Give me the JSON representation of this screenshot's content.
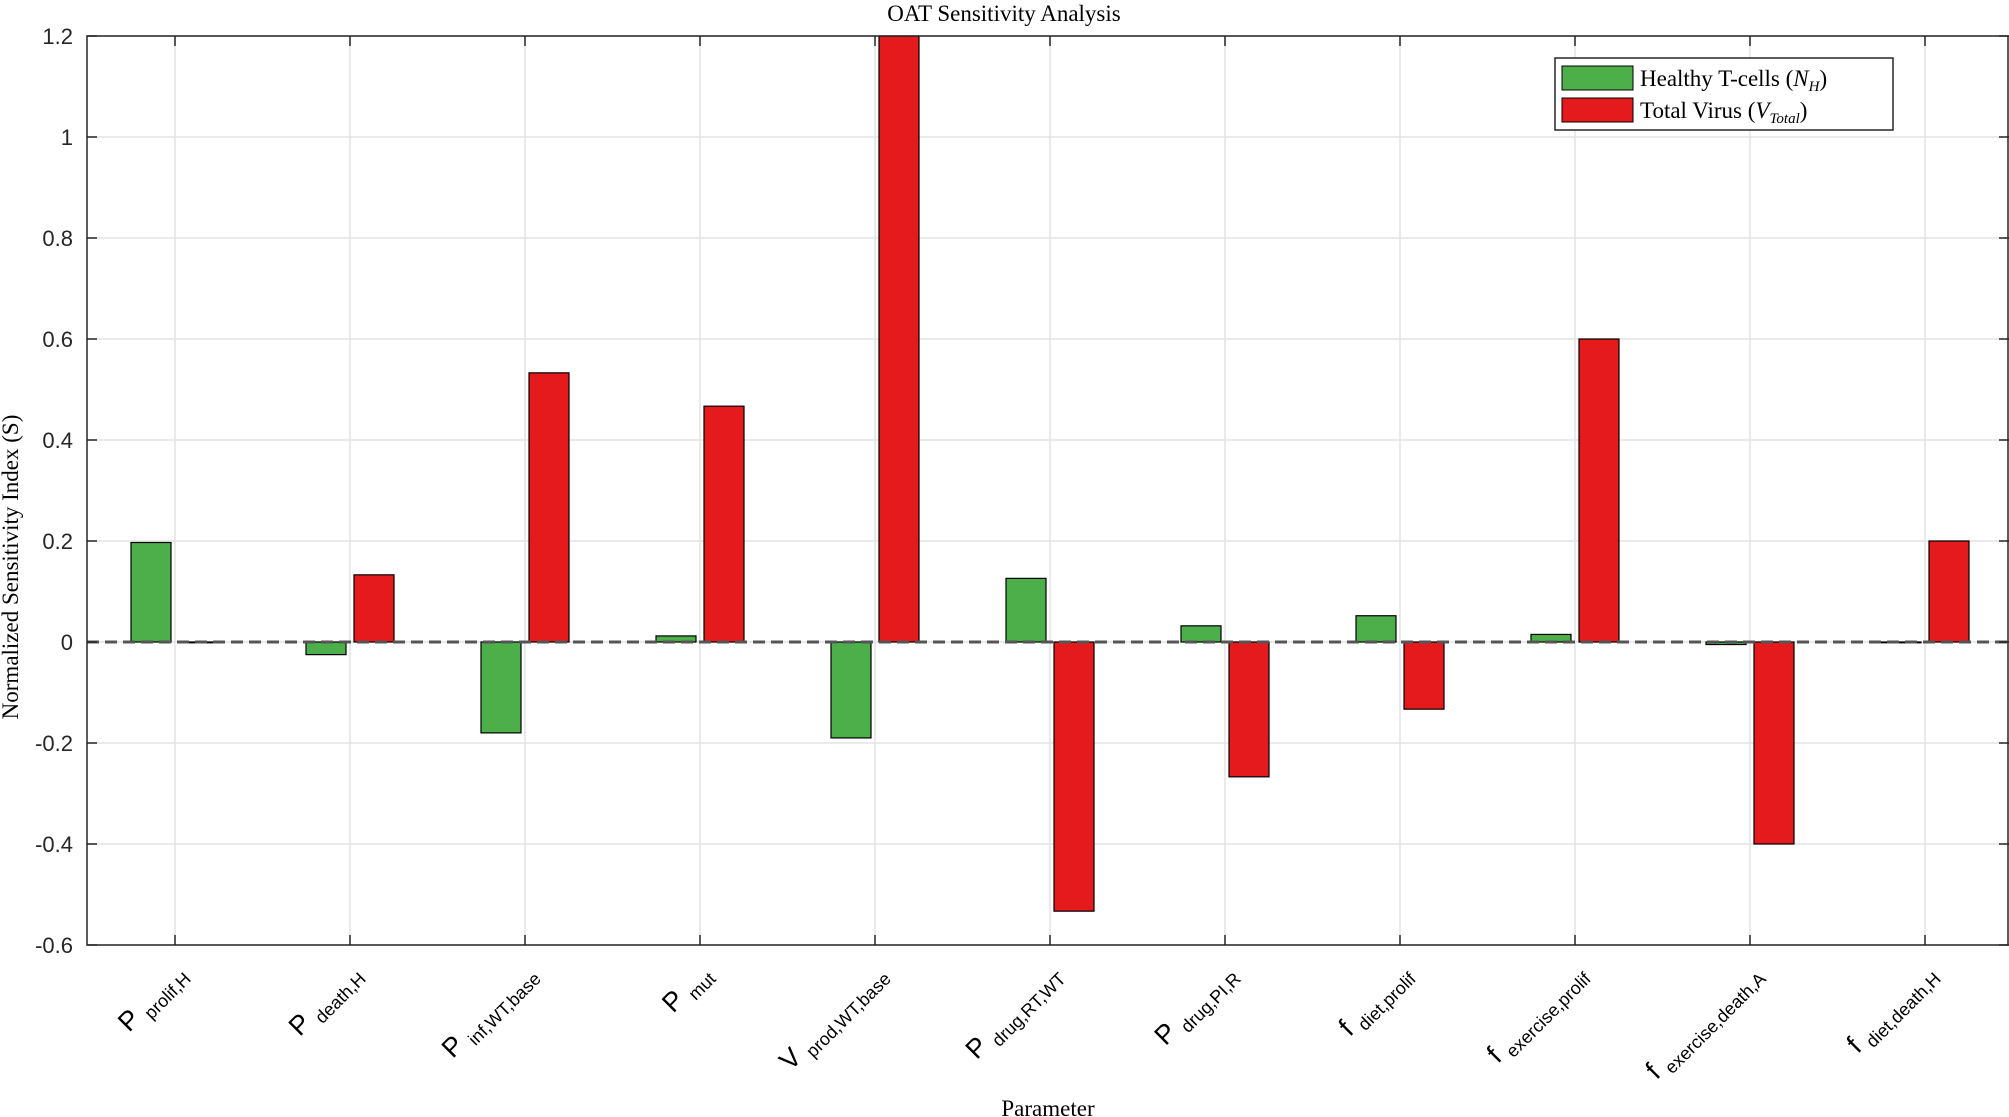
{
  "chart_data": {
    "type": "bar",
    "title": "OAT Sensitivity Analysis",
    "xlabel": "Parameter",
    "ylabel": "Normalized Sensitivity Index (S)",
    "ylim": [
      -0.6,
      1.2
    ],
    "yticks": [
      -0.6,
      -0.4,
      -0.2,
      0,
      0.2,
      0.4,
      0.6,
      0.8,
      1,
      1.2
    ],
    "ytick_labels": [
      "-0.6",
      "-0.4",
      "-0.2",
      "0",
      "0.2",
      "0.4",
      "0.6",
      "0.8",
      "1",
      "1.2"
    ],
    "grid": true,
    "legend_position": "top-right",
    "categories": [
      {
        "base": "P",
        "sub": "prolif,H"
      },
      {
        "base": "P",
        "sub": "death,H"
      },
      {
        "base": "P",
        "sub": "inf,WT,base"
      },
      {
        "base": "P",
        "sub": "mut"
      },
      {
        "base": "V",
        "sub": "prod,WT,base"
      },
      {
        "base": "P",
        "sub": "drug,RT,WT"
      },
      {
        "base": "P",
        "sub": "drug,PI,R"
      },
      {
        "base": "f",
        "sub": "diet,prolif"
      },
      {
        "base": "f",
        "sub": "exercise,prolif"
      },
      {
        "base": "f",
        "sub": "exercise,death,A"
      },
      {
        "base": "f",
        "sub": "diet,death,H"
      }
    ],
    "series": [
      {
        "name": "Healthy T-cells (N_H)",
        "legend_text": "Healthy T-cells (",
        "legend_symbol": "N",
        "legend_sub": "H",
        "color": "#4daf4a",
        "values": [
          0.197,
          -0.025,
          -0.18,
          0.012,
          -0.19,
          0.126,
          0.032,
          0.052,
          0.015,
          -0.005,
          0.0
        ]
      },
      {
        "name": "Total Virus (V_Total)",
        "legend_text": "Total Virus (",
        "legend_symbol": "V",
        "legend_sub": "Total",
        "color": "#e41a1c",
        "values": [
          0.0,
          0.133,
          0.533,
          0.467,
          1.2,
          -0.533,
          -0.267,
          -0.133,
          0.6,
          -0.4,
          0.2
        ]
      }
    ]
  }
}
